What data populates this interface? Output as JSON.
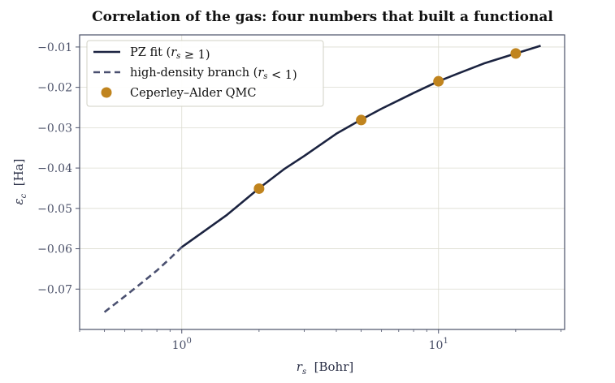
{
  "chart_data": {
    "type": "line",
    "title": "Correlation of the gas: four numbers that built a functional",
    "xlabel": "r_s  [Bohr]",
    "ylabel": "ε_c  [Ha]",
    "xscale": "log",
    "xlim": [
      0.4,
      31
    ],
    "ylim": [
      -0.08,
      -0.007
    ],
    "xticks": [
      {
        "value": 1,
        "label": "10^0"
      },
      {
        "value": 10,
        "label": "10^1"
      }
    ],
    "yticks": [
      -0.01,
      -0.02,
      -0.03,
      -0.04,
      -0.05,
      -0.06,
      -0.07
    ],
    "grid": true,
    "legend_position": "top-left",
    "colors": {
      "fit": "#1b2340",
      "branch": "#4a5070",
      "qmc": "#c0841e",
      "axes": "#4a5068"
    },
    "series": [
      {
        "name": "PZ fit (r_s ≥ 1)",
        "style": "solid",
        "x": [
          1.0,
          1.25,
          1.5,
          2.0,
          2.5,
          3.0,
          4.0,
          5.0,
          6.0,
          8.0,
          10.0,
          12.0,
          15.0,
          20.0,
          25.0
        ],
        "y": [
          -0.0596,
          -0.0552,
          -0.0516,
          -0.045,
          -0.0403,
          -0.037,
          -0.0315,
          -0.028,
          -0.0253,
          -0.0214,
          -0.0185,
          -0.0165,
          -0.0141,
          -0.0116,
          -0.0097
        ]
      },
      {
        "name": "high-density branch (r_s < 1)",
        "style": "dashed",
        "x": [
          0.5,
          0.6,
          0.7,
          0.8,
          0.9,
          1.0
        ],
        "y": [
          -0.0757,
          -0.0718,
          -0.0684,
          -0.0654,
          -0.0624,
          -0.0596
        ]
      },
      {
        "name": "Ceperley–Alder QMC",
        "style": "markers",
        "x": [
          2,
          5,
          10,
          20
        ],
        "y": [
          -0.0451,
          -0.0281,
          -0.0185,
          -0.0116
        ]
      }
    ]
  }
}
